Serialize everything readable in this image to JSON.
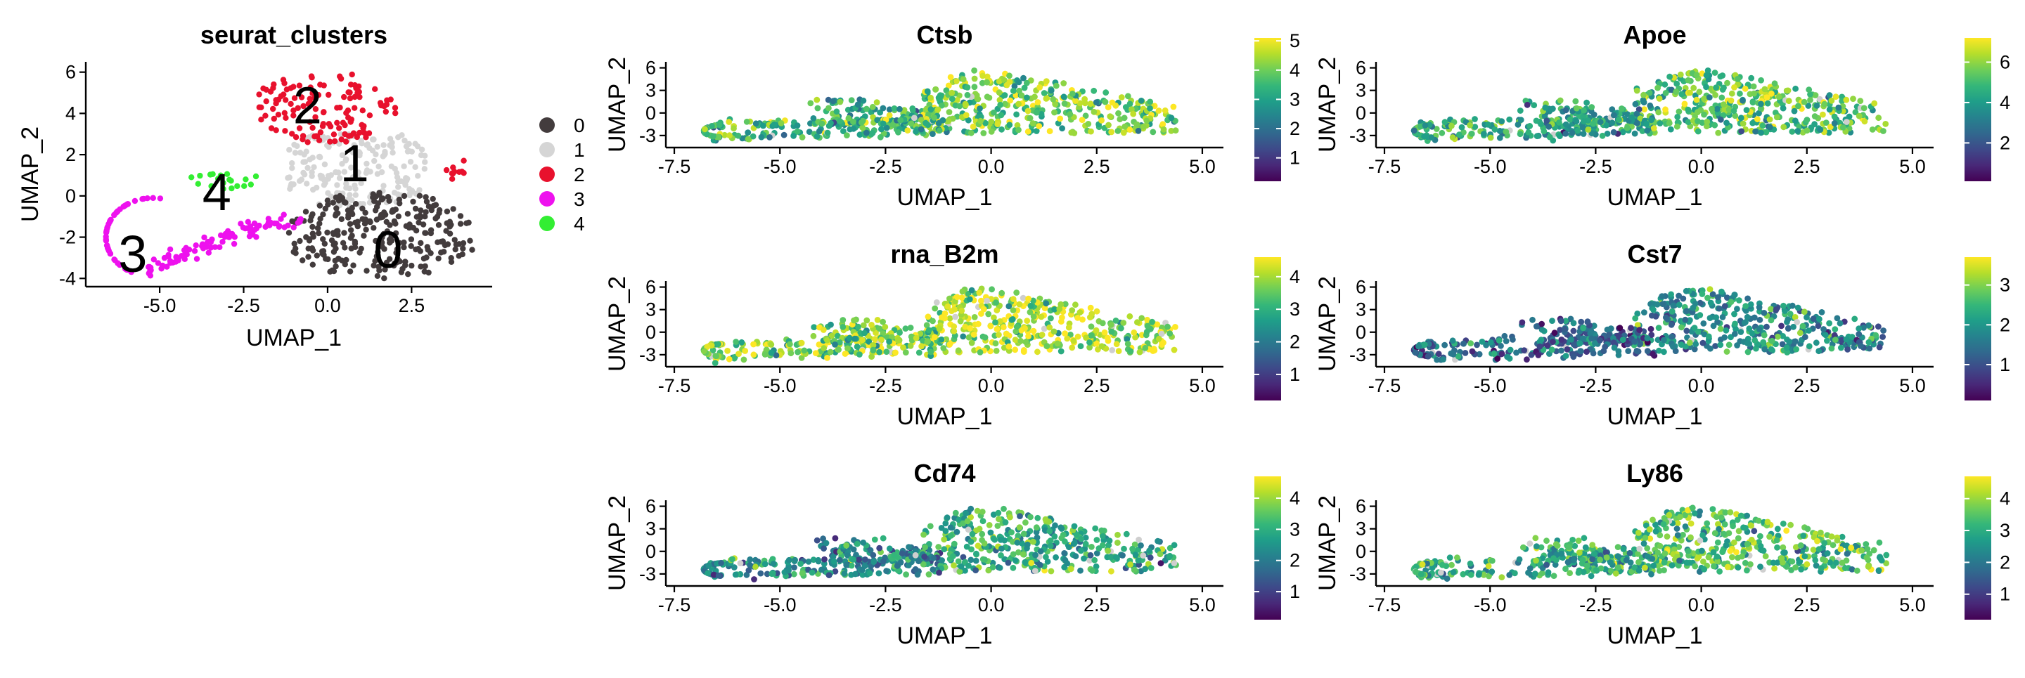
{
  "colors": {
    "axis": "#000000",
    "background": "#ffffff",
    "viridis": [
      "#440154",
      "#482878",
      "#3e4989",
      "#31688e",
      "#26828e",
      "#1f9e89",
      "#35b779",
      "#6ece58",
      "#b5de2b",
      "#fde725"
    ]
  },
  "chart_data": [
    {
      "type": "scatter",
      "title": "seurat_clusters",
      "xlabel": "UMAP_1",
      "ylabel": "UMAP_2",
      "xlim": [
        -7.2,
        4.9
      ],
      "ylim": [
        -4.4,
        6.5
      ],
      "xticks": [
        -5.0,
        -2.5,
        0.0,
        2.5
      ],
      "xtick_labels": [
        "-5.0",
        "-2.5",
        "0.0",
        "2.5"
      ],
      "yticks": [
        -4,
        -2,
        0,
        2,
        4,
        6
      ],
      "ytick_labels": [
        "-4",
        "-2",
        "0",
        "2",
        "4",
        "6"
      ],
      "legend_position": "right",
      "clusters": [
        {
          "name": "0",
          "color": "#433c3d",
          "label_x": 1.8,
          "label_y": -2.6,
          "approx_points": 340
        },
        {
          "name": "1",
          "color": "#d5d5d5",
          "label_x": 0.8,
          "label_y": 1.6,
          "approx_points": 200
        },
        {
          "name": "2",
          "color": "#e8112d",
          "label_x": -0.6,
          "label_y": 4.4,
          "approx_points": 150
        },
        {
          "name": "3",
          "color": "#ee11ee",
          "label_x": -5.8,
          "label_y": -2.8,
          "approx_points": 140
        },
        {
          "name": "4",
          "color": "#33ee33",
          "label_x": -3.3,
          "label_y": 0.2,
          "approx_points": 20
        }
      ]
    },
    {
      "type": "scatter",
      "title": "Ctsb",
      "xlabel": "UMAP_1",
      "ylabel": "UMAP_2",
      "xlim": [
        -7.7,
        5.5
      ],
      "ylim": [
        -4.6,
        6.8
      ],
      "xticks": [
        -7.5,
        -5.0,
        -2.5,
        0.0,
        2.5,
        5.0
      ],
      "xtick_labels": [
        "-7.5",
        "-5.0",
        "-2.5",
        "0.0",
        "2.5",
        "5.0"
      ],
      "yticks": [
        -3,
        0,
        3,
        6
      ],
      "ytick_labels": [
        "-3",
        "0",
        "3",
        "6"
      ],
      "colorbar": {
        "min": 0.2,
        "max": 5.1,
        "ticks": [
          1,
          2,
          3,
          4,
          5
        ],
        "tick_labels": [
          "1",
          "2",
          "3",
          "4",
          "5"
        ]
      },
      "expression": {
        "bulk": 0.78,
        "stream": 0.66,
        "tail": 0.7
      }
    },
    {
      "type": "scatter",
      "title": "Apoe",
      "xlabel": "UMAP_1",
      "ylabel": "UMAP_2",
      "xlim": [
        -7.7,
        5.5
      ],
      "ylim": [
        -4.6,
        6.8
      ],
      "xticks": [
        -7.5,
        -5.0,
        -2.5,
        0.0,
        2.5,
        5.0
      ],
      "xtick_labels": [
        "-7.5",
        "-5.0",
        "-2.5",
        "0.0",
        "2.5",
        "5.0"
      ],
      "yticks": [
        -3,
        0,
        3,
        6
      ],
      "ytick_labels": [
        "-3",
        "0",
        "3",
        "6"
      ],
      "colorbar": {
        "min": 0.1,
        "max": 7.2,
        "ticks": [
          2,
          4,
          6
        ],
        "tick_labels": [
          "2",
          "4",
          "6"
        ]
      },
      "expression": {
        "bulk": 0.72,
        "stream": 0.58,
        "tail": 0.62
      }
    },
    {
      "type": "scatter",
      "title": "rna_B2m",
      "xlabel": "UMAP_1",
      "ylabel": "UMAP_2",
      "xlim": [
        -7.7,
        5.5
      ],
      "ylim": [
        -4.6,
        6.8
      ],
      "xticks": [
        -7.5,
        -5.0,
        -2.5,
        0.0,
        2.5,
        5.0
      ],
      "xtick_labels": [
        "-7.5",
        "-5.0",
        "-2.5",
        "0.0",
        "2.5",
        "5.0"
      ],
      "yticks": [
        -3,
        0,
        3,
        6
      ],
      "ytick_labels": [
        "-3",
        "0",
        "3",
        "6"
      ],
      "colorbar": {
        "min": 0.2,
        "max": 4.6,
        "ticks": [
          1,
          2,
          3,
          4
        ],
        "tick_labels": [
          "1",
          "2",
          "3",
          "4"
        ]
      },
      "expression": {
        "bulk": 0.88,
        "stream": 0.8,
        "tail": 0.82
      }
    },
    {
      "type": "scatter",
      "title": "Cst7",
      "xlabel": "UMAP_1",
      "ylabel": "UMAP_2",
      "xlim": [
        -7.7,
        5.5
      ],
      "ylim": [
        -4.6,
        6.8
      ],
      "xticks": [
        -7.5,
        -5.0,
        -2.5,
        0.0,
        2.5,
        5.0
      ],
      "xtick_labels": [
        "-7.5",
        "-5.0",
        "-2.5",
        "0.0",
        "2.5",
        "5.0"
      ],
      "yticks": [
        -3,
        0,
        3,
        6
      ],
      "ytick_labels": [
        "-3",
        "0",
        "3",
        "6"
      ],
      "colorbar": {
        "min": 0.1,
        "max": 3.7,
        "ticks": [
          1,
          2,
          3
        ],
        "tick_labels": [
          "1",
          "2",
          "3"
        ]
      },
      "expression": {
        "bulk": 0.5,
        "stream": 0.32,
        "tail": 0.3
      }
    },
    {
      "type": "scatter",
      "title": "Cd74",
      "xlabel": "UMAP_1",
      "ylabel": "UMAP_2",
      "xlim": [
        -7.7,
        5.5
      ],
      "ylim": [
        -4.6,
        6.8
      ],
      "xticks": [
        -7.5,
        -5.0,
        -2.5,
        0.0,
        2.5,
        5.0
      ],
      "xtick_labels": [
        "-7.5",
        "-5.0",
        "-2.5",
        "0.0",
        "2.5",
        "5.0"
      ],
      "yticks": [
        -3,
        0,
        3,
        6
      ],
      "ytick_labels": [
        "-3",
        "0",
        "3",
        "6"
      ],
      "colorbar": {
        "min": 0.1,
        "max": 4.7,
        "ticks": [
          1,
          2,
          3,
          4
        ],
        "tick_labels": [
          "1",
          "2",
          "3",
          "4"
        ]
      },
      "expression": {
        "bulk": 0.62,
        "stream": 0.48,
        "tail": 0.45
      }
    },
    {
      "type": "scatter",
      "title": "Ly86",
      "xlabel": "UMAP_1",
      "ylabel": "UMAP_2",
      "xlim": [
        -7.7,
        5.5
      ],
      "ylim": [
        -4.6,
        6.8
      ],
      "xticks": [
        -7.5,
        -5.0,
        -2.5,
        0.0,
        2.5,
        5.0
      ],
      "xtick_labels": [
        "-7.5",
        "-5.0",
        "-2.5",
        "0.0",
        "2.5",
        "5.0"
      ],
      "yticks": [
        -3,
        0,
        3,
        6
      ],
      "ytick_labels": [
        "-3",
        "0",
        "3",
        "6"
      ],
      "colorbar": {
        "min": 0.2,
        "max": 4.7,
        "ticks": [
          1,
          2,
          3,
          4
        ],
        "tick_labels": [
          "1",
          "2",
          "3",
          "4"
        ]
      },
      "expression": {
        "bulk": 0.7,
        "stream": 0.6,
        "tail": 0.66
      }
    }
  ]
}
